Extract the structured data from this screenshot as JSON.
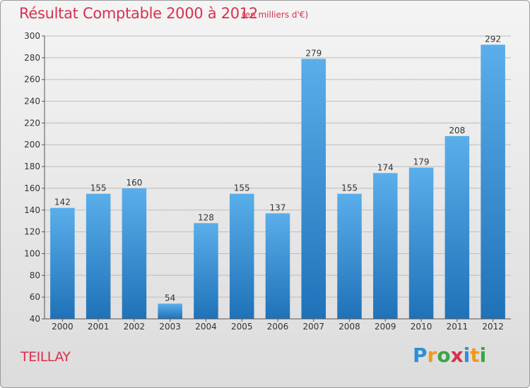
{
  "title": "Résultat Comptable 2000 à 2012",
  "subtitle": "(en milliers d'€)",
  "location_label": "TEILLAY",
  "logo": {
    "text": "Proxiti",
    "letters": [
      {
        "ch": "P",
        "color": "#2e8fd6"
      },
      {
        "ch": "r",
        "color": "#f39a1e"
      },
      {
        "ch": "o",
        "color": "#3aa544"
      },
      {
        "ch": "x",
        "color": "#d8314e"
      },
      {
        "ch": "i",
        "color": "#2e8fd6"
      },
      {
        "ch": "t",
        "color": "#f39a1e"
      },
      {
        "ch": "i",
        "color": "#3aa544"
      }
    ]
  },
  "colors": {
    "accent": "#d8314e",
    "bar_top": "#5aaeea",
    "bar_bottom": "#1f72b8",
    "grid": "#bdbdbd"
  },
  "chart_data": {
    "type": "bar",
    "title": "Résultat Comptable 2000 à 2012",
    "subtitle": "(en milliers d'€)",
    "categories": [
      "2000",
      "2001",
      "2002",
      "2003",
      "2004",
      "2005",
      "2006",
      "2007",
      "2008",
      "2009",
      "2010",
      "2011",
      "2012"
    ],
    "values": [
      142,
      155,
      160,
      54,
      128,
      155,
      137,
      279,
      155,
      174,
      179,
      208,
      292
    ],
    "ylim": [
      40,
      300
    ],
    "yticks": [
      40,
      60,
      80,
      100,
      120,
      140,
      160,
      180,
      200,
      220,
      240,
      260,
      280,
      300
    ],
    "xlabel": "",
    "ylabel": "",
    "grid": true
  }
}
